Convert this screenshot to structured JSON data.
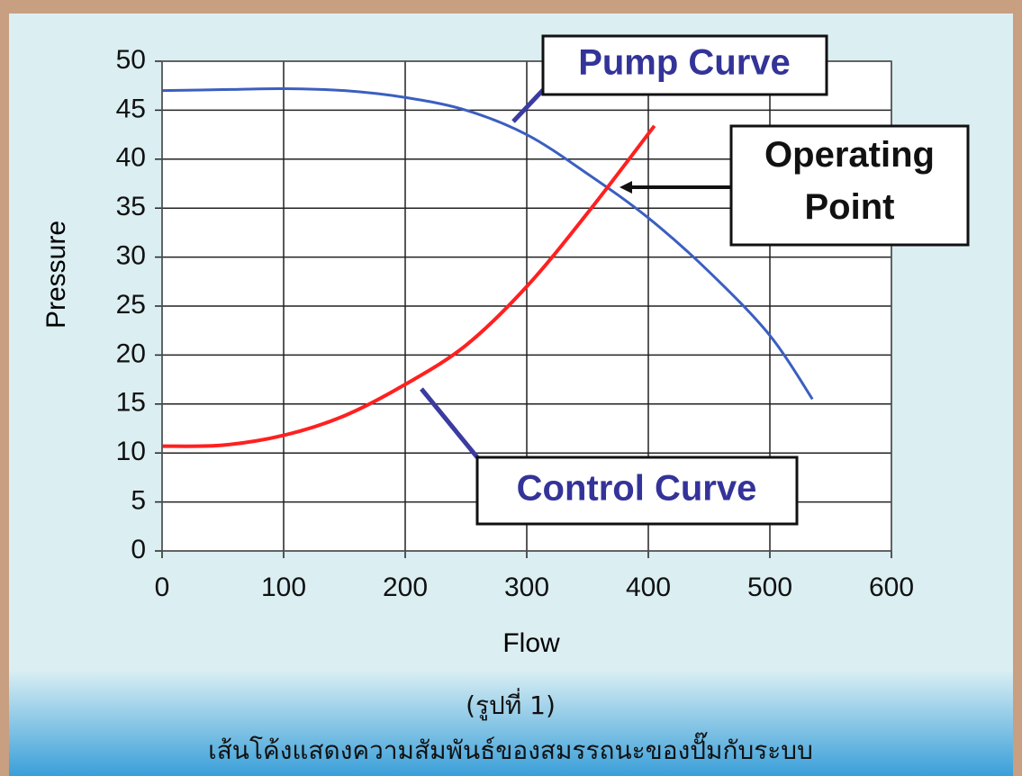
{
  "chart_data": {
    "type": "line",
    "x_label": "Flow",
    "y_label": "Pressure",
    "xlim": [
      0,
      600
    ],
    "xticks": [
      0,
      100,
      200,
      300,
      400,
      500,
      600
    ],
    "ylim": [
      0,
      50
    ],
    "yticks": [
      0,
      5,
      10,
      15,
      20,
      25,
      30,
      35,
      40,
      45,
      50
    ],
    "grid": true,
    "series": [
      {
        "name": "Pump Curve",
        "color": "#3b5fc0",
        "x": [
          0,
          50,
          100,
          150,
          200,
          250,
          300,
          350,
          400,
          450,
          500,
          535
        ],
        "values": [
          47,
          47.1,
          47.2,
          47,
          46.3,
          45,
          42.5,
          38.5,
          34,
          28.5,
          22,
          15.5
        ]
      },
      {
        "name": "Control Curve",
        "color": "#ff2020",
        "x": [
          0,
          50,
          100,
          150,
          200,
          250,
          300,
          350,
          405
        ],
        "values": [
          10.7,
          10.8,
          11.8,
          13.8,
          17,
          21,
          27,
          34.5,
          43.4
        ]
      }
    ],
    "annotation": "Operating Point",
    "caption": [
      "(รูปที่ 1)",
      "เส้นโค้งแสดงความสัมพันธ์ของสมรรถนะของปั๊มกับระบบ"
    ]
  }
}
